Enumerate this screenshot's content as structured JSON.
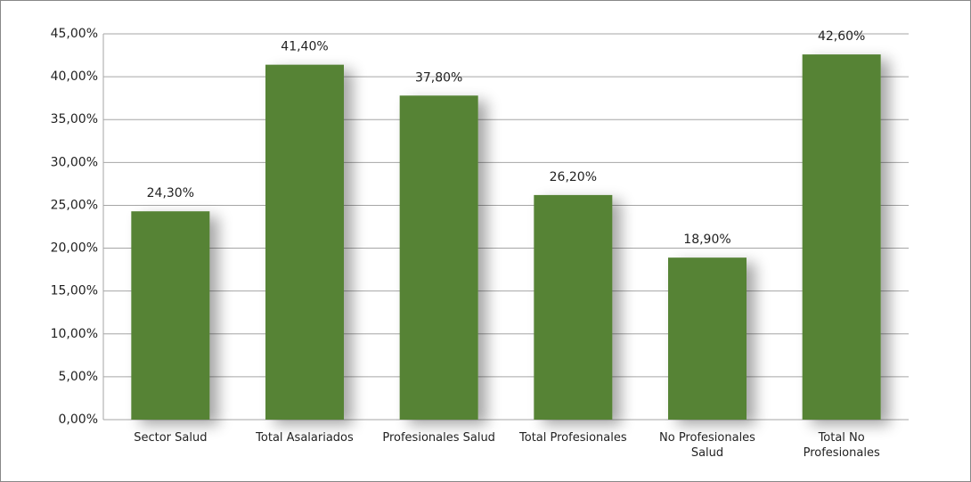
{
  "chart_data": {
    "type": "bar",
    "categories": [
      "Sector Salud",
      "Total Asalariados",
      "Profesionales Salud",
      "Total Profesionales",
      "No Profesionales\nSalud",
      "Total No\nProfesionales"
    ],
    "values": [
      24.3,
      41.4,
      37.8,
      26.2,
      18.9,
      42.6
    ],
    "value_labels": [
      "24,30%",
      "41,40%",
      "37,80%",
      "26,20%",
      "18,90%",
      "42,60%"
    ],
    "color": "#568336",
    "ylim": [
      0,
      45
    ],
    "yticks": [
      {
        "value": 0,
        "label": "0,00%"
      },
      {
        "value": 5,
        "label": "5,00%"
      },
      {
        "value": 10,
        "label": "10,00%"
      },
      {
        "value": 15,
        "label": "15,00%"
      },
      {
        "value": 20,
        "label": "20,00%"
      },
      {
        "value": 25,
        "label": "25,00%"
      },
      {
        "value": 30,
        "label": "30,00%"
      },
      {
        "value": 35,
        "label": "35,00%"
      },
      {
        "value": 40,
        "label": "40,00%"
      },
      {
        "value": 45,
        "label": "45,00%"
      }
    ],
    "grid": true
  }
}
